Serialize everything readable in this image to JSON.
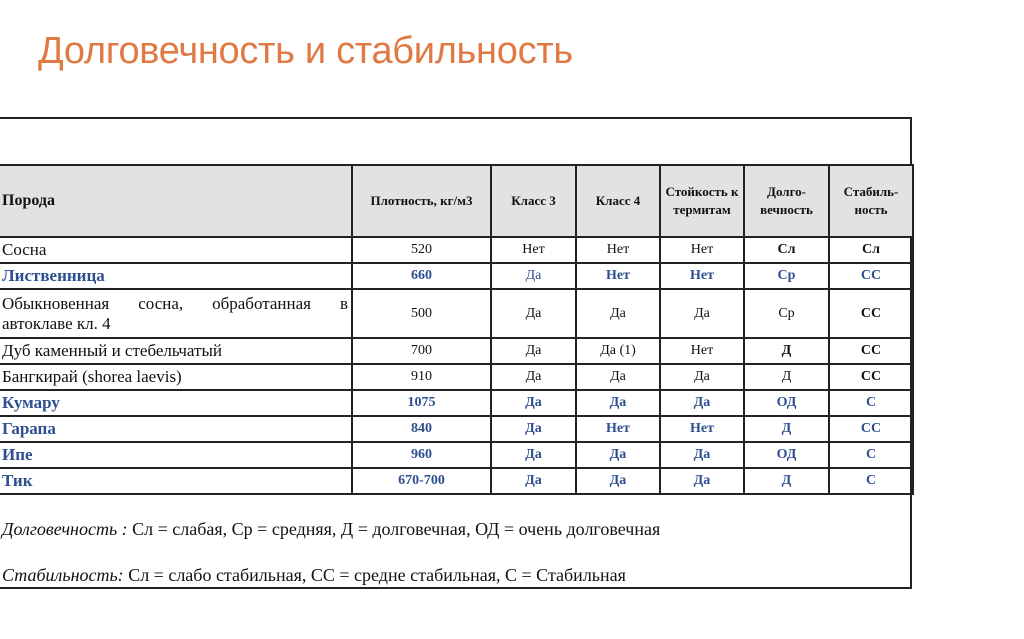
{
  "title": "Долговечность и стабильность",
  "colors": {
    "title": "#e07a45",
    "highlight_text": "#2e4f8f",
    "header_bg": "#e2e2e2"
  },
  "table": {
    "headers": [
      "Порода",
      "Плотность, кг/м3",
      "Класс 3",
      "Класс 4",
      "Стойкость к термитам",
      "Долго-вечность",
      "Стабиль-ность"
    ],
    "rows": [
      {
        "cells": [
          "Сосна",
          "520",
          "Нет",
          "Нет",
          "Нет",
          "Сл",
          "Сл"
        ],
        "highlight": false,
        "bold": [
          false,
          false,
          false,
          false,
          false,
          true,
          true
        ]
      },
      {
        "cells": [
          "Лиственница",
          "660",
          "Да",
          "Нет",
          "Нет",
          "Ср",
          "СС"
        ],
        "highlight": true,
        "bold": [
          true,
          true,
          false,
          true,
          true,
          true,
          true
        ]
      },
      {
        "cells": [
          "Обыкновенная сосна, обработанная в автоклаве кл. 4",
          "500",
          "Да",
          "Да",
          "Да",
          "Ср",
          "СС"
        ],
        "highlight": false,
        "bold": [
          false,
          false,
          false,
          false,
          false,
          false,
          true
        ]
      },
      {
        "cells": [
          "Дуб каменный и стебельчатый",
          "700",
          "Да",
          "Да (1)",
          "Нет",
          "Д",
          "СС"
        ],
        "highlight": false,
        "bold": [
          false,
          false,
          false,
          false,
          false,
          true,
          true
        ]
      },
      {
        "cells": [
          "Бангкирай (shorea laevis)",
          "910",
          "Да",
          "Да",
          "Да",
          "Д",
          "СС"
        ],
        "highlight": false,
        "bold": [
          false,
          false,
          false,
          false,
          false,
          false,
          true
        ]
      },
      {
        "cells": [
          "Кумару",
          "1075",
          "Да",
          "Да",
          "Да",
          "ОД",
          "С"
        ],
        "highlight": true,
        "bold": [
          true,
          true,
          true,
          true,
          true,
          true,
          true
        ]
      },
      {
        "cells": [
          "Гарапа",
          "840",
          "Да",
          "Нет",
          "Нет",
          "Д",
          "СС"
        ],
        "highlight": true,
        "bold": [
          true,
          true,
          true,
          true,
          true,
          true,
          true
        ]
      },
      {
        "cells": [
          "Ипе",
          "960",
          "Да",
          "Да",
          "Да",
          "ОД",
          "С"
        ],
        "highlight": true,
        "bold": [
          true,
          true,
          true,
          true,
          true,
          true,
          true
        ]
      },
      {
        "cells": [
          "Тик",
          "670-700",
          "Да",
          "Да",
          "Да",
          "Д",
          "С"
        ],
        "highlight": true,
        "bold": [
          true,
          true,
          true,
          true,
          true,
          true,
          true
        ]
      }
    ]
  },
  "legend": {
    "durability_label": "Долговечность :",
    "durability_text": " Сл = слабая, Ср = средняя, Д = долговечная, ОД = очень долговечная",
    "stability_label": "Стабильность:",
    "stability_text": " Сл = слабо стабильная, СС = средне стабильная, С = Стабильная"
  }
}
